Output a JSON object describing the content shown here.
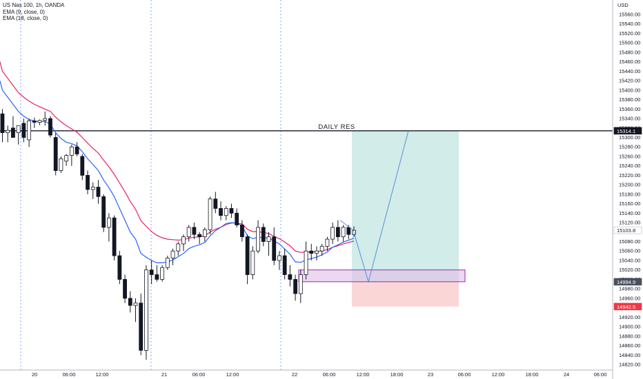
{
  "legend": {
    "title": "US Nas 100, 1h, OANDA",
    "ema1": "EMA (9, close, 0)",
    "ema2": "EMA (18, close, 0)"
  },
  "chart_data": {
    "type": "candlestick",
    "currency": "USD",
    "ylim": [
      14810,
      15580
    ],
    "y_ticks": [
      15560,
      15540,
      15520,
      15500,
      15480,
      15460,
      15440,
      15420,
      15400,
      15380,
      15360,
      15340,
      15320,
      15300,
      15280,
      15260,
      15240,
      15220,
      15200,
      15180,
      15160,
      15140,
      15120,
      15100,
      15080,
      15060,
      15040,
      15020,
      15000,
      14980,
      14960,
      14940,
      14920,
      14900,
      14880,
      14860,
      14840,
      14820
    ],
    "x_ticks": [
      "20",
      "06:00",
      "12:00",
      "21",
      "06:00",
      "12:00",
      "22",
      "06:00",
      "12:00",
      "18:00",
      "23",
      "06:00",
      "12:00",
      "18:00",
      "24",
      "06:00"
    ],
    "annotation": "DAILY RES",
    "resistance_level": 15314.1,
    "price_tags": [
      {
        "value": 15314.1,
        "label": "15314.1",
        "color": "#131722",
        "filled": true
      },
      {
        "value": 15103.8,
        "label": "15103.8",
        "color": "#ffffff",
        "filled": false
      },
      {
        "value": 14994.9,
        "label": "14994.9",
        "color": "#4a4f5e",
        "filled": true
      },
      {
        "value": 14942.5,
        "label": "14942.5",
        "color": "#f23645",
        "filled": true
      }
    ],
    "candles": [
      [
        15350,
        15360,
        15290,
        15310
      ],
      [
        15310,
        15325,
        15290,
        15315
      ],
      [
        15320,
        15345,
        15300,
        15300
      ],
      [
        15310,
        15325,
        15285,
        15325
      ],
      [
        15330,
        15340,
        15290,
        15300
      ],
      [
        15295,
        15340,
        15280,
        15335
      ],
      [
        15335,
        15342,
        15320,
        15332
      ],
      [
        15332,
        15338,
        15326,
        15336
      ],
      [
        15336,
        15355,
        15325,
        15340
      ],
      [
        15340,
        15345,
        15300,
        15305
      ],
      [
        15300,
        15310,
        15220,
        15230
      ],
      [
        15230,
        15260,
        15225,
        15255
      ],
      [
        15250,
        15265,
        15240,
        15262
      ],
      [
        15262,
        15285,
        15240,
        15280
      ],
      [
        15280,
        15290,
        15260,
        15265
      ],
      [
        15260,
        15265,
        15210,
        15220
      ],
      [
        15220,
        15230,
        15180,
        15190
      ],
      [
        15190,
        15205,
        15170,
        15195
      ],
      [
        15195,
        15210,
        15160,
        15175
      ],
      [
        15175,
        15180,
        15100,
        15110
      ],
      [
        15110,
        15140,
        15080,
        15130
      ],
      [
        15130,
        15135,
        15040,
        15050
      ],
      [
        15050,
        15060,
        14990,
        15000
      ],
      [
        15000,
        15010,
        14950,
        14960
      ],
      [
        14960,
        14975,
        14930,
        14945
      ],
      [
        14945,
        14960,
        14910,
        14950
      ],
      [
        14950,
        14970,
        14840,
        14850
      ],
      [
        14850,
        15030,
        14830,
        15020
      ],
      [
        15020,
        15040,
        14990,
        15010
      ],
      [
        15010,
        15030,
        14995,
        15000
      ],
      [
        15000,
        15030,
        14995,
        15025
      ],
      [
        15025,
        15050,
        15020,
        15045
      ],
      [
        15045,
        15065,
        15030,
        15060
      ],
      [
        15060,
        15080,
        15050,
        15075
      ],
      [
        15075,
        15095,
        15060,
        15090
      ],
      [
        15090,
        15115,
        15080,
        15110
      ],
      [
        15110,
        15120,
        15085,
        15095
      ],
      [
        15095,
        15100,
        15075,
        15090
      ],
      [
        15090,
        15110,
        15080,
        15105
      ],
      [
        15105,
        15175,
        15095,
        15170
      ],
      [
        15170,
        15185,
        15140,
        15150
      ],
      [
        15150,
        15165,
        15125,
        15135
      ],
      [
        15135,
        15155,
        15125,
        15150
      ],
      [
        15150,
        15160,
        15130,
        15140
      ],
      [
        15140,
        15150,
        15110,
        15115
      ],
      [
        15115,
        15125,
        15080,
        15090
      ],
      [
        15090,
        15095,
        14990,
        15010
      ],
      [
        15010,
        15070,
        15000,
        15060
      ],
      [
        15060,
        15125,
        15055,
        15110
      ],
      [
        15110,
        15118,
        15070,
        15080
      ],
      [
        15080,
        15100,
        15050,
        15090
      ],
      [
        15090,
        15110,
        15030,
        15040
      ],
      [
        15040,
        15060,
        15020,
        15050
      ],
      [
        15050,
        15065,
        15000,
        15010
      ],
      [
        15010,
        15030,
        14985,
        15000
      ],
      [
        15000,
        15010,
        14955,
        14970
      ],
      [
        14970,
        15020,
        14950,
        15010
      ],
      [
        15010,
        15080,
        15000,
        15060
      ],
      [
        15060,
        15075,
        15040,
        15055
      ],
      [
        15055,
        15070,
        15040,
        15060
      ],
      [
        15060,
        15075,
        15050,
        15070
      ],
      [
        15070,
        15090,
        15060,
        15085
      ],
      [
        15085,
        15120,
        15075,
        15110
      ],
      [
        15110,
        15125,
        15080,
        15090
      ],
      [
        15090,
        15115,
        15080,
        15110
      ],
      [
        15110,
        15115,
        15085,
        15095
      ],
      [
        15095,
        15112,
        15090,
        15103.8
      ]
    ],
    "ema9": [
      15400,
      15385,
      15370,
      15355,
      15345,
      15338,
      15335,
      15333,
      15334,
      15328,
      15310,
      15298,
      15290,
      15287,
      15282,
      15270,
      15255,
      15243,
      15230,
      15210,
      15194,
      15175,
      15150,
      15125,
      15100,
      15085,
      15055,
      15047,
      15040,
      15035,
      15035,
      15037,
      15041,
      15048,
      15055,
      15065,
      15070,
      15073,
      15078,
      15092,
      15103,
      15110,
      15118,
      15120,
      15119,
      15113,
      15092,
      15086,
      15089,
      15088,
      15088,
      15081,
      15075,
      15064,
      15053,
      15037,
      15036,
      15041,
      15044,
      15047,
      15052,
      15058,
      15068,
      15073,
      15079,
      15083,
      15087
    ],
    "ema18": [
      15440,
      15425,
      15410,
      15395,
      15385,
      15377,
      15370,
      15365,
      15360,
      15355,
      15343,
      15333,
      15325,
      15318,
      15311,
      15300,
      15288,
      15277,
      15267,
      15252,
      15238,
      15222,
      15204,
      15185,
      15165,
      15148,
      15124,
      15112,
      15101,
      15093,
      15088,
      15085,
      15084,
      15083,
      15084,
      15087,
      15089,
      15090,
      15092,
      15100,
      15106,
      15110,
      15116,
      15119,
      15119,
      15117,
      15106,
      15101,
      15101,
      15099,
      15097,
      15091,
      15086,
      15079,
      15071,
      15060,
      15057,
      15058,
      15058,
      15059,
      15060,
      15063,
      15068,
      15071,
      15075,
      15078,
      15081
    ]
  }
}
